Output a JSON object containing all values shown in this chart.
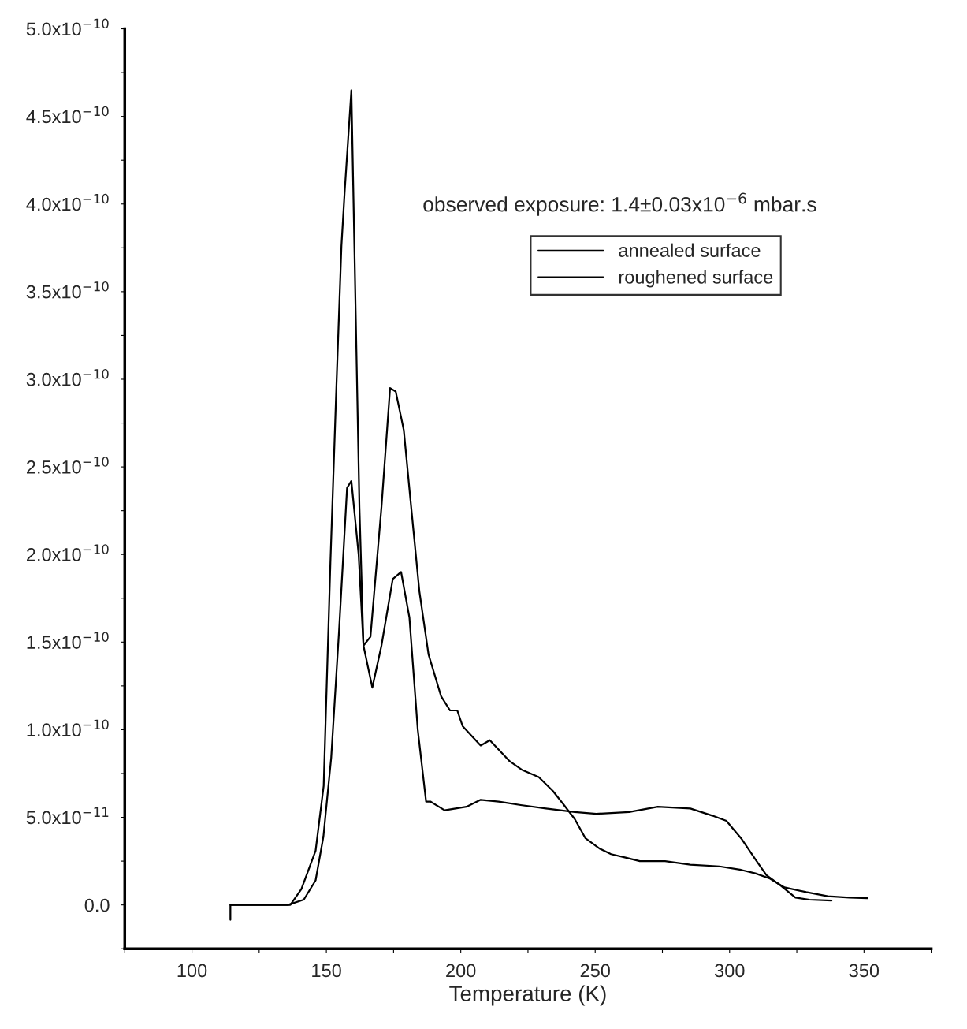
{
  "chart_data": {
    "type": "line",
    "xlabel": "Temperature (K)",
    "annotations": [
      "observed exposure: 1.4±0.03x10$^{−6}$ mbar.s"
    ],
    "xlim": [
      75,
      375
    ],
    "ylim": [
      -2.5e-11,
      5e-10
    ],
    "xticks": [
      {
        "value": 75,
        "label": null
      },
      100,
      {
        "value": 125,
        "label": null
      },
      150,
      {
        "value": 175,
        "label": null
      },
      200,
      {
        "value": 225,
        "label": null
      },
      250,
      {
        "value": 275,
        "label": null
      },
      300,
      {
        "value": 325,
        "label": null
      },
      350,
      {
        "value": 375,
        "label": null
      }
    ],
    "yticks": [
      {
        "value": -2.5e-11,
        "label": null
      },
      {
        "value": 0,
        "label": "0.0"
      },
      {
        "value": 2.5e-11,
        "label": null
      },
      {
        "value": 5e-11,
        "label": "5.0x10$^{−11}$"
      },
      {
        "value": 7.5e-11,
        "label": null
      },
      {
        "value": 1e-10,
        "label": "1.0x10$^{−10}$"
      },
      {
        "value": 1.25e-10,
        "label": null
      },
      {
        "value": 1.5e-10,
        "label": "1.5x10$^{−10}$"
      },
      {
        "value": 1.75e-10,
        "label": null
      },
      {
        "value": 2e-10,
        "label": "2.0x10$^{−10}$"
      },
      {
        "value": 2.25e-10,
        "label": null
      },
      {
        "value": 2.5e-10,
        "label": "2.5x10$^{−10}$"
      },
      {
        "value": 2.75e-10,
        "label": null
      },
      {
        "value": 3e-10,
        "label": "3.0x10$^{−10}$"
      },
      {
        "value": 3.25e-10,
        "label": null
      },
      {
        "value": 3.5e-10,
        "label": "3.5x10$^{−10}$"
      },
      {
        "value": 3.75e-10,
        "label": null
      },
      {
        "value": 4e-10,
        "label": "4.0x10$^{−10}$"
      },
      {
        "value": 4.25e-10,
        "label": null
      },
      {
        "value": 4.5e-10,
        "label": "4.5x10$^{−10}$"
      },
      {
        "value": 4.75e-10,
        "label": null
      },
      {
        "value": 5e-10,
        "label": "5.0x10$^{−10}$"
      }
    ],
    "grid": false,
    "legend": "top right",
    "marker": "none",
    "line_style": "solid",
    "series": [
      {
        "name": "annealed surface",
        "color": "#000000",
        "x": [
          114.3,
          135.7,
          141.6,
          146,
          148.9,
          151.8,
          154.7,
          157.7,
          159.3,
          162,
          163.8,
          166.4,
          170.5,
          173.7,
          175.8,
          178.8,
          181.3,
          184.6,
          188,
          192.7,
          196,
          198.7,
          200.7,
          207.4,
          210.8,
          218.2,
          222.9,
          229,
          234.3,
          238.4,
          242.4,
          246.4,
          251.8,
          255.9,
          261.3,
          266.6,
          276,
          285.4,
          296.2,
          304.3,
          309.6,
          315,
          320.4,
          328.5,
          336.5,
          344.6,
          351.3
        ],
        "values": [
          0,
          0,
          3e-12,
          1.4e-11,
          3.9e-11,
          8.4e-11,
          1.56e-10,
          2.38e-10,
          2.42e-10,
          2e-10,
          1.48e-10,
          1.53e-10,
          2.27e-10,
          2.95e-10,
          2.93e-10,
          2.71e-10,
          2.31e-10,
          1.79e-10,
          1.43e-10,
          1.19e-10,
          1.11e-10,
          1.11e-10,
          1.02e-10,
          9.1e-11,
          9.4e-11,
          8.2e-11,
          7.7e-11,
          7.3e-11,
          6.5e-11,
          5.7e-11,
          4.9e-11,
          3.8e-11,
          3.2e-11,
          2.9e-11,
          2.7e-11,
          2.5e-11,
          2.5e-11,
          2.3e-11,
          2.2e-11,
          2e-11,
          1.8e-11,
          1.5e-11,
          1e-11,
          7.3e-12,
          5e-12,
          4.2e-12,
          3.8e-12
        ]
      },
      {
        "name": "roughened surface",
        "color": "#000000",
        "x": [
          114.3,
          114.3,
          136.6,
          140.7,
          146,
          149,
          151.5,
          153.6,
          155.6,
          156.8,
          159.3,
          160.9,
          162.3,
          163.8,
          167.1,
          170.5,
          174.7,
          177.8,
          180.9,
          184,
          187.1,
          188.7,
          194,
          202.1,
          207.4,
          214.1,
          222.3,
          231.7,
          242.4,
          250.4,
          262.6,
          273.3,
          285.4,
          293.5,
          298.8,
          304.3,
          309.6,
          313.7,
          319,
          324.5,
          329.7,
          337.9
        ],
        "values": [
          -8.5e-12,
          0,
          0,
          9e-12,
          3.1e-11,
          6.8e-11,
          1.95e-10,
          2.9e-10,
          3.76e-10,
          4.07e-10,
          4.65e-10,
          3.38e-10,
          2.27e-10,
          1.48e-10,
          1.24e-10,
          1.48e-10,
          1.86e-10,
          1.9e-10,
          1.64e-10,
          1e-10,
          5.9e-11,
          5.9e-11,
          5.4e-11,
          5.6e-11,
          6e-11,
          5.9e-11,
          5.7e-11,
          5.5e-11,
          5.3e-11,
          5.2e-11,
          5.3e-11,
          5.6e-11,
          5.5e-11,
          5.1e-11,
          4.8e-11,
          3.8e-11,
          2.6e-11,
          1.7e-11,
          1.1e-11,
          4.2e-12,
          3e-12,
          2.5e-12
        ]
      }
    ]
  }
}
